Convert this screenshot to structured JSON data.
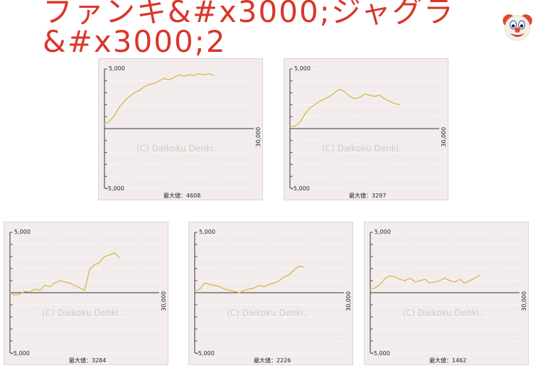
{
  "title": "ファンキ&#x3000;ジャグラ&#x3000;2",
  "title_emoji": "clown-face",
  "colors": {
    "title": "#d9362b",
    "line": "#d4b84a",
    "panel": "#f3ecec",
    "axis": "#333333",
    "grid": "#ffffff"
  },
  "chart_data": [
    {
      "type": "line",
      "watermark": "(C) Daikoku Denki.",
      "y_top_label": "5,000",
      "y_bottom_label": "-5,000",
      "x_end_label": "30,000",
      "max_label": "最大値：4608",
      "xlim": [
        0,
        30000
      ],
      "ylim": [
        -5000,
        5000
      ],
      "x": [
        0,
        1000,
        2000,
        3000,
        4000,
        5000,
        6000,
        7000,
        8000,
        9000,
        10000,
        11000,
        12000,
        13000,
        14000,
        15000,
        16000,
        17000,
        18000,
        19000,
        20000,
        21000,
        22000
      ],
      "y": [
        400,
        600,
        1100,
        1800,
        2300,
        2700,
        3000,
        3200,
        3500,
        3700,
        3800,
        4000,
        4200,
        4100,
        4300,
        4500,
        4400,
        4500,
        4450,
        4600,
        4500,
        4600,
        4450
      ]
    },
    {
      "type": "line",
      "watermark": "(C) Daikoku Denki.",
      "y_top_label": "5,000",
      "y_bottom_label": "-5,000",
      "x_end_label": "30,000",
      "max_label": "最大値：3297",
      "xlim": [
        0,
        30000
      ],
      "ylim": [
        -5000,
        5000
      ],
      "x": [
        0,
        1000,
        2000,
        3000,
        4000,
        5000,
        6000,
        7000,
        8000,
        9000,
        10000,
        11000,
        12000,
        13000,
        14000,
        15000,
        16000,
        17000,
        18000,
        19000,
        20000,
        21000,
        22000
      ],
      "y": [
        200,
        200,
        500,
        1200,
        1700,
        2000,
        2300,
        2500,
        2700,
        3000,
        3300,
        3100,
        2700,
        2500,
        2600,
        2900,
        2800,
        2700,
        2800,
        2500,
        2300,
        2100,
        2000
      ]
    },
    {
      "type": "line",
      "watermark": "(C) Daikoku Denki.",
      "y_top_label": "5,000",
      "y_bottom_label": "-5,000",
      "x_end_label": "30,000",
      "max_label": "最大値：3284",
      "xlim": [
        0,
        30000
      ],
      "ylim": [
        -5000,
        5000
      ],
      "x": [
        0,
        1000,
        2000,
        3000,
        4000,
        5000,
        6000,
        7000,
        8000,
        9000,
        10000,
        11000,
        12000,
        13000,
        14000,
        15000,
        16000,
        17000,
        18000,
        19000,
        20000,
        21000,
        22000
      ],
      "y": [
        0,
        -200,
        -100,
        100,
        50,
        300,
        200,
        600,
        500,
        800,
        1000,
        900,
        800,
        600,
        400,
        200,
        1900,
        2300,
        2500,
        3000,
        3100,
        3300,
        2900
      ]
    },
    {
      "type": "line",
      "watermark": "(C) Daikoku Denki.",
      "y_top_label": "5,000",
      "y_bottom_label": "-5,000",
      "x_end_label": "30,000",
      "max_label": "最大値：2226",
      "xlim": [
        0,
        30000
      ],
      "ylim": [
        -5000,
        5000
      ],
      "x": [
        0,
        1000,
        2000,
        3000,
        4000,
        5000,
        6000,
        7000,
        8000,
        9000,
        10000,
        11000,
        12000,
        13000,
        14000,
        15000,
        16000,
        17000,
        18000,
        19000,
        20000,
        21000,
        22000
      ],
      "y": [
        100,
        300,
        800,
        700,
        600,
        500,
        300,
        200,
        100,
        0,
        200,
        300,
        400,
        600,
        500,
        700,
        800,
        1000,
        1300,
        1500,
        1900,
        2200,
        2100
      ]
    },
    {
      "type": "line",
      "watermark": "(C) Daikoku Denki.",
      "y_top_label": "5,000",
      "y_bottom_label": "-5,000",
      "x_end_label": "30,000",
      "max_label": "最大値：1462",
      "xlim": [
        0,
        30000
      ],
      "ylim": [
        -5000,
        5000
      ],
      "x": [
        0,
        1000,
        2000,
        3000,
        4000,
        5000,
        6000,
        7000,
        8000,
        9000,
        10000,
        11000,
        12000,
        13000,
        14000,
        15000,
        16000,
        17000,
        18000,
        19000,
        20000,
        21000,
        22000
      ],
      "y": [
        300,
        400,
        700,
        1200,
        1400,
        1300,
        1100,
        1000,
        1200,
        900,
        1000,
        1100,
        800,
        900,
        1000,
        1200,
        1000,
        900,
        1100,
        800,
        1000,
        1200,
        1450
      ]
    }
  ]
}
